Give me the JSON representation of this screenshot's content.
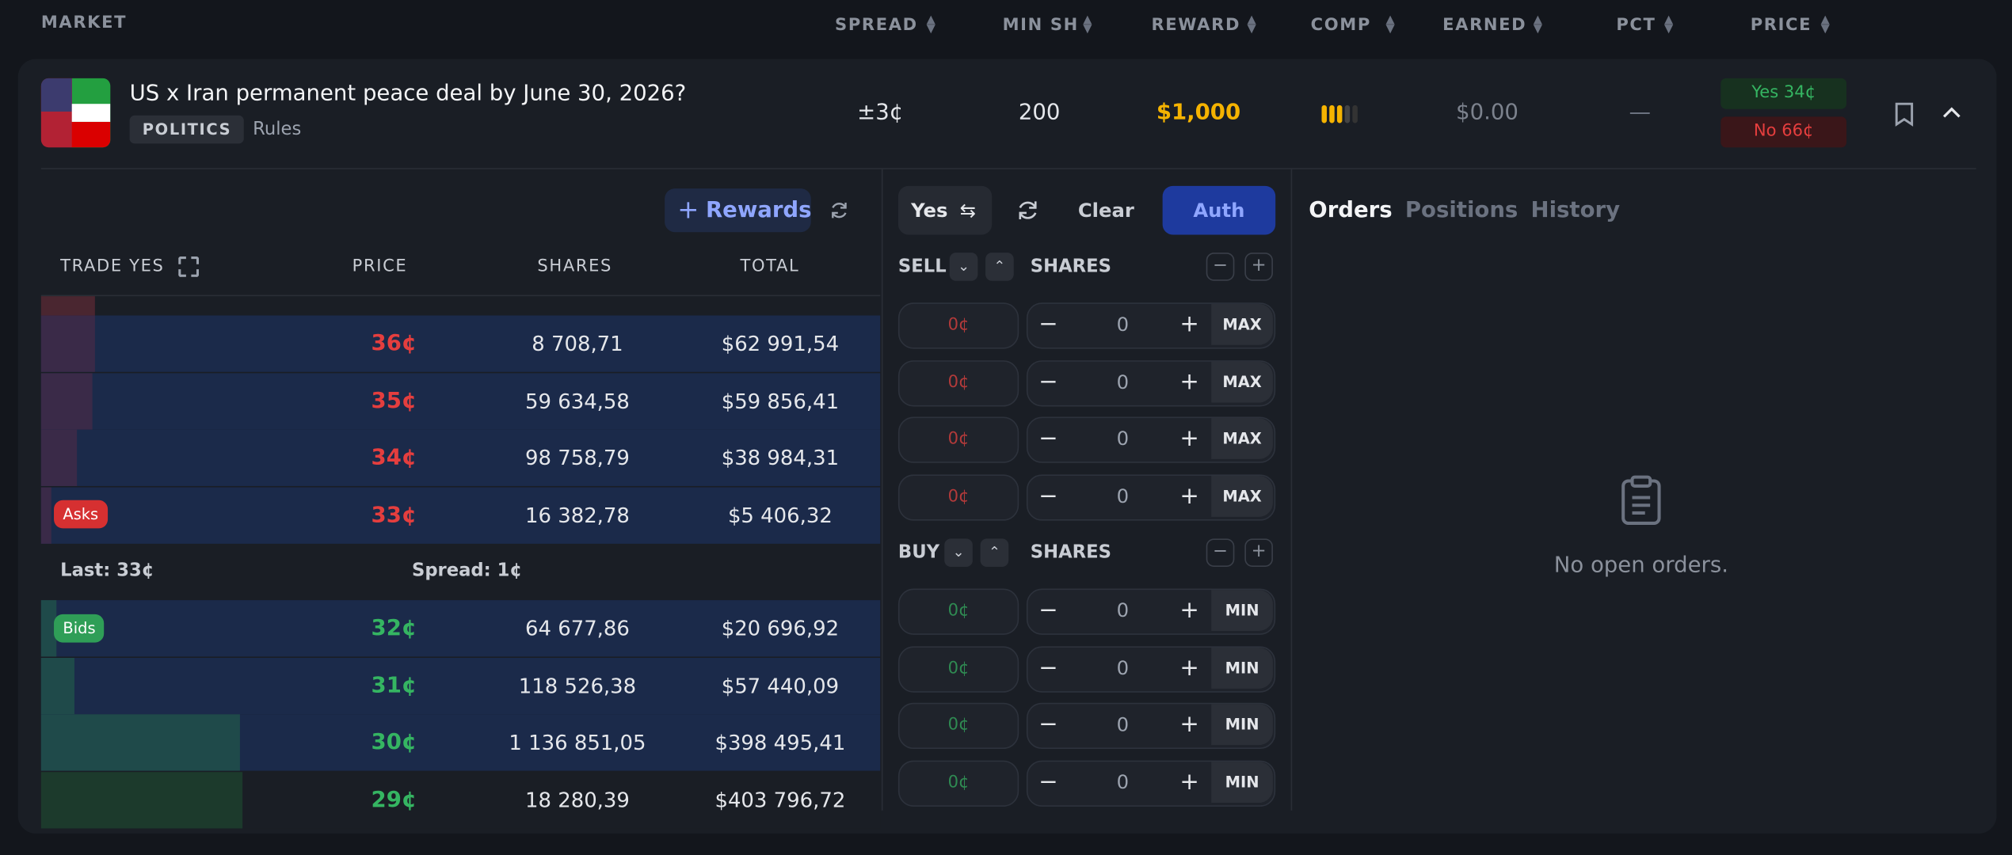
{
  "header": {
    "market": "MARKET",
    "columns": [
      "SPREAD",
      "MIN SH",
      "REWARD",
      "COMP",
      "EARNED",
      "PCT",
      "PRICE"
    ]
  },
  "market": {
    "title": "US x Iran permanent peace deal by June 30, 2026?",
    "tag": "POLITICS",
    "rules": "Rules",
    "spread": "±3¢",
    "min_shares": "200",
    "reward": "$1,000",
    "earned": "$0.00",
    "pct": "—",
    "yes_price": "Yes 34¢",
    "no_price": "No 66¢"
  },
  "order_book": {
    "rewards_button": "Rewards",
    "columns": [
      "TRADE YES",
      "PRICE",
      "SHARES",
      "TOTAL"
    ],
    "asks": [
      {
        "price": "36¢",
        "shares": "8 708,71",
        "total": "$62 991,54"
      },
      {
        "price": "35¢",
        "shares": "59 634,58",
        "total": "$59 856,41"
      },
      {
        "price": "34¢",
        "shares": "98 758,79",
        "total": "$38 984,31"
      },
      {
        "price": "33¢",
        "shares": "16 382,78",
        "total": "$5 406,32"
      }
    ],
    "asks_label": "Asks",
    "last": "Last: 33¢",
    "spread": "Spread: 1¢",
    "bids_label": "Bids",
    "bids": [
      {
        "price": "32¢",
        "shares": "64 677,86",
        "total": "$20 696,92"
      },
      {
        "price": "31¢",
        "shares": "118 526,38",
        "total": "$57 440,09"
      },
      {
        "price": "30¢",
        "shares": "1 136 851,05",
        "total": "$398 495,41"
      },
      {
        "price": "29¢",
        "shares": "18 280,39",
        "total": "$403 796,72"
      }
    ]
  },
  "trade": {
    "outcome": "Yes",
    "clear": "Clear",
    "auth": "Auth",
    "sell": "SELL",
    "buy": "BUY",
    "shares_label": "SHARES",
    "sell_rows": [
      {
        "price": "0¢",
        "shares": "0",
        "action": "MAX"
      },
      {
        "price": "0¢",
        "shares": "0",
        "action": "MAX"
      },
      {
        "price": "0¢",
        "shares": "0",
        "action": "MAX"
      },
      {
        "price": "0¢",
        "shares": "0",
        "action": "MAX"
      }
    ],
    "buy_rows": [
      {
        "price": "0¢",
        "shares": "0",
        "action": "MIN"
      },
      {
        "price": "0¢",
        "shares": "0",
        "action": "MIN"
      },
      {
        "price": "0¢",
        "shares": "0",
        "action": "MIN"
      },
      {
        "price": "0¢",
        "shares": "0",
        "action": "MIN"
      }
    ]
  },
  "tabs": [
    "Orders",
    "Positions",
    "History"
  ],
  "empty_state": "No open orders."
}
